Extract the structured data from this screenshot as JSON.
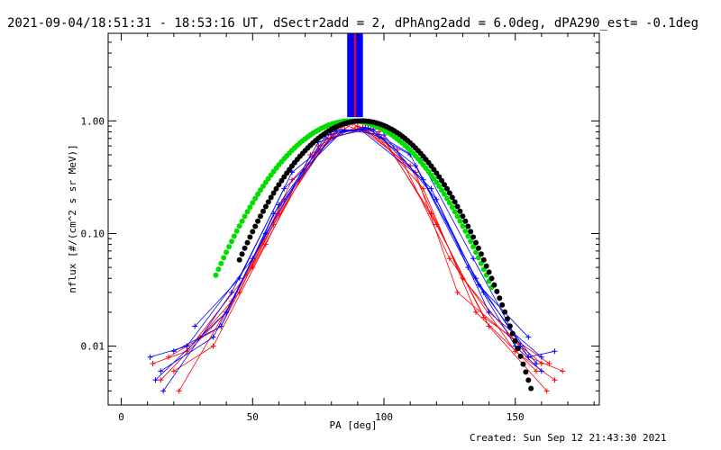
{
  "header": {
    "title": "2021-09-04/18:51:31 - 18:53:16 UT, dSectr2add = 2, dPhAng2add = 6.0deg, dPA290_est= -0.1deg"
  },
  "footer": {
    "created": "Created: Sun Sep 12 21:43:30 2021"
  },
  "colors": {
    "red": "#ff0000",
    "blue": "#0000ff",
    "green": "#00dd00",
    "black": "#000000"
  },
  "chart_data": {
    "type": "line",
    "xlabel": "PA [deg]",
    "ylabel": "nflux [#/(cm^2 s sr MeV)]",
    "xlim": [
      -5,
      182
    ],
    "ylim": [
      0.003,
      6.0
    ],
    "yscale": "log",
    "xticks": [
      {
        "value": 0,
        "label": "0"
      },
      {
        "value": 50,
        "label": "50"
      },
      {
        "value": 100,
        "label": "100"
      },
      {
        "value": 150,
        "label": "150"
      }
    ],
    "yticks": [
      {
        "value": 0.01,
        "label": "0.01"
      },
      {
        "value": 0.1,
        "label": "0.10"
      },
      {
        "value": 1.0,
        "label": "1.00"
      }
    ],
    "vertical_band": {
      "x_range": [
        86,
        92
      ],
      "y_range": [
        1.08,
        6.0
      ]
    },
    "series": [
      {
        "color": "red",
        "style": "lines-plus",
        "lines": [
          [
            [
              12,
              0.007
            ],
            [
              25,
              0.009
            ],
            [
              50,
              0.05
            ],
            [
              75,
              0.6
            ],
            [
              90,
              0.9
            ],
            [
              110,
              0.4
            ],
            [
              130,
              0.04
            ],
            [
              155,
              0.008
            ],
            [
              168,
              0.006
            ]
          ],
          [
            [
              20,
              0.006
            ],
            [
              35,
              0.01
            ],
            [
              55,
              0.08
            ],
            [
              72,
              0.5
            ],
            [
              88,
              0.95
            ],
            [
              105,
              0.55
            ],
            [
              125,
              0.06
            ],
            [
              150,
              0.009
            ],
            [
              165,
              0.005
            ]
          ],
          [
            [
              15,
              0.005
            ],
            [
              40,
              0.02
            ],
            [
              60,
              0.15
            ],
            [
              80,
              0.75
            ],
            [
              92,
              0.88
            ],
            [
              112,
              0.35
            ],
            [
              128,
              0.03
            ],
            [
              160,
              0.007
            ]
          ],
          [
            [
              30,
              0.012
            ],
            [
              45,
              0.03
            ],
            [
              65,
              0.3
            ],
            [
              85,
              0.92
            ],
            [
              100,
              0.7
            ],
            [
              120,
              0.12
            ],
            [
              140,
              0.015
            ],
            [
              162,
              0.004
            ]
          ],
          [
            [
              18,
              0.008
            ],
            [
              38,
              0.015
            ],
            [
              58,
              0.12
            ],
            [
              78,
              0.7
            ],
            [
              95,
              0.85
            ],
            [
              115,
              0.25
            ],
            [
              135,
              0.02
            ],
            [
              158,
              0.006
            ]
          ],
          [
            [
              22,
              0.004
            ],
            [
              42,
              0.025
            ],
            [
              62,
              0.2
            ],
            [
              82,
              0.85
            ],
            [
              98,
              0.8
            ],
            [
              118,
              0.15
            ],
            [
              138,
              0.018
            ],
            [
              163,
              0.007
            ]
          ]
        ]
      },
      {
        "color": "blue",
        "style": "lines-plus",
        "lines": [
          [
            [
              11,
              0.008
            ],
            [
              25,
              0.01
            ],
            [
              50,
              0.06
            ],
            [
              75,
              0.65
            ],
            [
              92,
              0.85
            ],
            [
              110,
              0.5
            ],
            [
              135,
              0.04
            ],
            [
              155,
              0.008
            ],
            [
              165,
              0.009
            ]
          ],
          [
            [
              15,
              0.006
            ],
            [
              35,
              0.012
            ],
            [
              55,
              0.1
            ],
            [
              78,
              0.75
            ],
            [
              94,
              0.86
            ],
            [
              112,
              0.4
            ],
            [
              132,
              0.05
            ],
            [
              150,
              0.01
            ],
            [
              160,
              0.006
            ]
          ],
          [
            [
              13,
              0.005
            ],
            [
              40,
              0.02
            ],
            [
              60,
              0.18
            ],
            [
              80,
              0.8
            ],
            [
              91,
              0.84
            ],
            [
              115,
              0.3
            ],
            [
              138,
              0.03
            ],
            [
              158,
              0.007
            ]
          ],
          [
            [
              28,
              0.015
            ],
            [
              45,
              0.04
            ],
            [
              65,
              0.35
            ],
            [
              85,
              0.83
            ],
            [
              100,
              0.75
            ],
            [
              120,
              0.2
            ],
            [
              140,
              0.02
            ],
            [
              160,
              0.008
            ]
          ],
          [
            [
              20,
              0.009
            ],
            [
              38,
              0.015
            ],
            [
              58,
              0.15
            ],
            [
              82,
              0.82
            ],
            [
              96,
              0.84
            ],
            [
              118,
              0.25
            ],
            [
              136,
              0.035
            ],
            [
              155,
              0.012
            ]
          ],
          [
            [
              16,
              0.004
            ],
            [
              42,
              0.03
            ],
            [
              62,
              0.25
            ],
            [
              84,
              0.8
            ],
            [
              93,
              0.87
            ],
            [
              114,
              0.45
            ],
            [
              134,
              0.06
            ],
            [
              152,
              0.01
            ]
          ]
        ]
      },
      {
        "color": "green",
        "style": "dots",
        "model": "gaussian",
        "peak": 1.0,
        "center": 87.5,
        "sigma": 20.5,
        "x_range": [
          36,
          141
        ]
      },
      {
        "color": "black",
        "style": "dots",
        "model": "gaussian",
        "peak": 1.0,
        "center": 91.5,
        "sigma": 19.5,
        "x_range": [
          45,
          156
        ]
      }
    ]
  }
}
